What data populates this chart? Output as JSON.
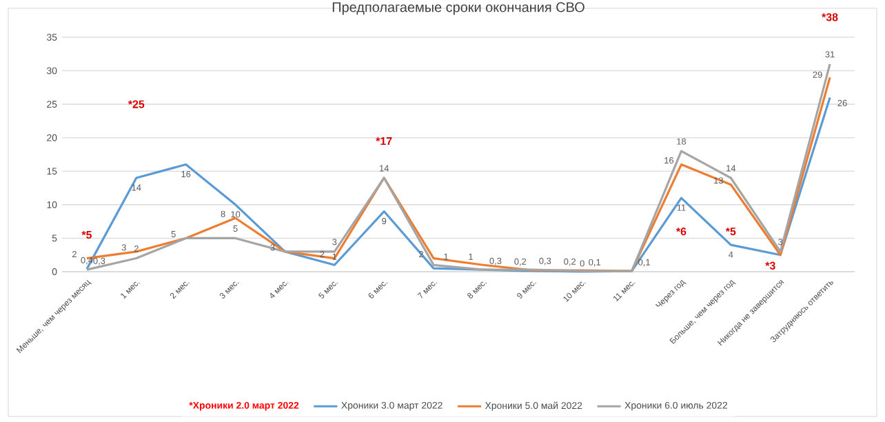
{
  "chart_data": {
    "type": "line",
    "title": "Предполагаемые сроки окончания СВО",
    "categories": [
      "Меньше, чем через месяц",
      "1 мес.",
      "2 мес.",
      "3 мес.",
      "4 мес.",
      "5 мес.",
      "6 мес.",
      "7 мес.",
      "8 мес.",
      "9 мес.",
      "10 мес.",
      "11 мес.",
      "Через год",
      "Больше, чем через год",
      "Никогда не завершится",
      "Затрудняюсь ответить"
    ],
    "series": [
      {
        "name": "Хроники 3.0 март 2022",
        "color": "#5b9bd5",
        "values": [
          0.4,
          14,
          16,
          10,
          3,
          1,
          9,
          0.5,
          0.3,
          0.1,
          0,
          0.1,
          11,
          4,
          2.5,
          26
        ],
        "value_labels": [
          "0,4",
          "14",
          "16",
          "10",
          null,
          "1",
          "9",
          null,
          null,
          null,
          "0",
          null,
          "11",
          "4",
          null,
          "26"
        ]
      },
      {
        "name": "Хроники 5.0 май 2022",
        "color": "#ed7d31",
        "values": [
          2,
          3,
          5,
          8,
          3,
          2,
          14,
          2,
          1,
          0.2,
          0.2,
          0.1,
          16,
          13,
          2.5,
          29
        ],
        "value_labels": [
          "2",
          "3",
          "5",
          "8",
          "3",
          "2",
          null,
          "2",
          "1",
          "0,2",
          "0,2",
          null,
          "16",
          "13",
          null,
          "29"
        ]
      },
      {
        "name": "Хроники 6.0 июль 2022",
        "color": "#a5a5a5",
        "values": [
          0.3,
          2,
          5,
          5,
          3,
          3,
          14,
          1,
          0.3,
          0.3,
          0.1,
          0.1,
          18,
          14,
          3,
          31
        ],
        "value_labels": [
          "0,3",
          "2",
          null,
          "5",
          null,
          "3",
          "14",
          "1",
          "0,3",
          "0,3",
          "0,1",
          "0,1",
          "18",
          "14",
          "3",
          "31"
        ]
      }
    ],
    "annotations": [
      "*Хроники 2.0 март 2022",
      "*5",
      "*25",
      "*17",
      "*6",
      "*5",
      "*3",
      "*38"
    ],
    "ylim": [
      0,
      35
    ],
    "yticks": [
      0,
      5,
      10,
      15,
      20,
      25,
      30,
      35
    ],
    "grid": "y",
    "legend": "bottom",
    "marker": "none",
    "line_style": "solid"
  }
}
